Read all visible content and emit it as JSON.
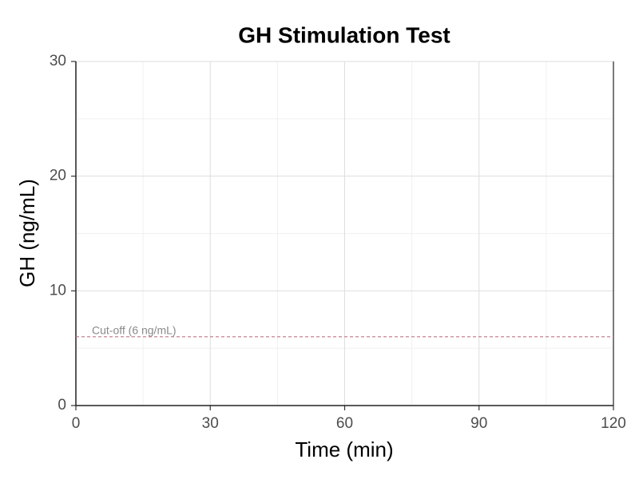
{
  "chart_data": {
    "type": "line",
    "title": "GH Stimulation Test",
    "x_label": "Time (min)",
    "y_label": "GH (ng/mL)",
    "series": [],
    "xlim": [
      0,
      120
    ],
    "xticks": [
      0,
      30,
      60,
      90,
      120
    ],
    "minor_xticks": [
      15,
      45,
      75,
      105
    ],
    "ylim": [
      0,
      30
    ],
    "yticks": [
      0,
      10,
      20,
      30
    ],
    "minor_yticks": [
      5,
      15,
      25
    ],
    "grid": true,
    "reference_line": {
      "value": 6,
      "label": "Cut-off (6 ng/mL)",
      "color": "#c27485"
    }
  }
}
